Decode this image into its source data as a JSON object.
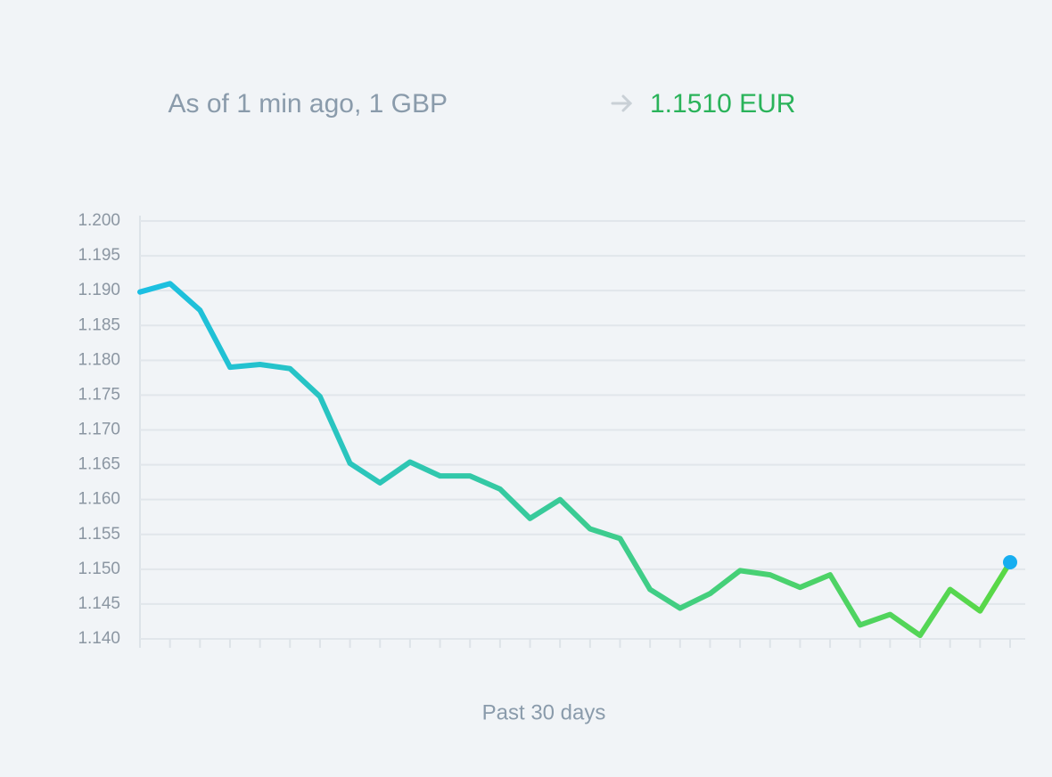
{
  "chart_data": {
    "type": "line",
    "title": "As of 1 min ago, 1 GBP",
    "title_highlight": "1.1510 EUR",
    "xlabel": "Past 30 days",
    "categories": [
      null,
      null,
      null,
      null,
      null,
      null,
      null,
      null,
      null,
      null,
      null,
      null,
      null,
      null,
      null,
      null,
      null,
      null,
      null,
      null,
      null,
      null,
      null,
      null,
      null,
      null,
      null,
      null,
      null,
      null
    ],
    "values": [
      1.1898,
      1.191,
      1.1872,
      1.179,
      1.1794,
      1.1788,
      1.1748,
      1.1652,
      1.1624,
      1.1654,
      1.1634,
      1.1634,
      1.1615,
      1.1573,
      1.16,
      1.1558,
      1.1544,
      1.1471,
      1.1444,
      1.1465,
      1.1498,
      1.1492,
      1.1474,
      1.1492,
      1.142,
      1.1435,
      1.1405,
      1.1471,
      1.144,
      1.151
    ],
    "gradient": [
      "#1bbfe3",
      "#5ad845"
    ],
    "marker_color": "#17aef0",
    "ylim": [
      1.14,
      1.2
    ],
    "yticks": [
      {
        "value": 1.14,
        "label": "1.140"
      },
      1.145,
      {
        "value": 1.15,
        "label": "1.150"
      },
      1.155,
      {
        "value": 1.16,
        "label": "1.160"
      },
      1.165,
      {
        "value": 1.17,
        "label": "1.170"
      },
      1.175,
      {
        "value": 1.18,
        "label": "1.180"
      },
      1.185,
      {
        "value": 1.19,
        "label": "1.190"
      },
      1.195,
      {
        "value": 1.2,
        "label": "1.200"
      }
    ],
    "grid": true
  }
}
